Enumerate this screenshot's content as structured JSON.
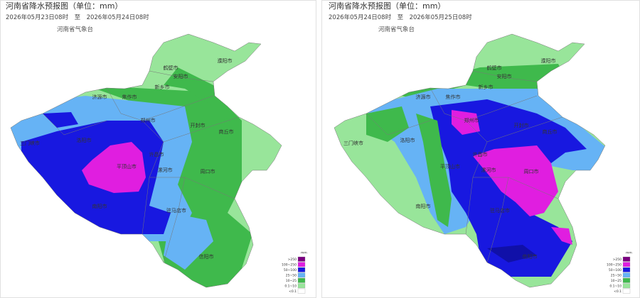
{
  "panels": [
    {
      "title": "河南省降水预报图（单位：mm）",
      "period": "2026年05月23日08时　至　2026年05月24日08时",
      "agency": "河南省气象台",
      "cities": [
        "鹤壁市",
        "濮阳市",
        "安阳市",
        "新乡市",
        "焦作市",
        "济源市",
        "郑州市",
        "开封市",
        "商丘市",
        "三门峡市",
        "洛阳市",
        "平顶山市",
        "许昌市",
        "漯河市",
        "周口市",
        "南阳市",
        "驻马店市",
        "信阳市"
      ],
      "legend": {
        "unit": "mm",
        "items": [
          ">250",
          "100~250",
          "50~100",
          "25~50",
          "10~25",
          "0.1~10",
          "<0.1"
        ]
      }
    },
    {
      "title": "河南省降水预报图（单位：mm）",
      "period": "2026年05月24日08时　至　2026年05月25日08时",
      "agency": "河南省气象台",
      "cities": [
        "鹤壁市",
        "濮阳市",
        "安阳市",
        "新乡市",
        "焦作市",
        "济源市",
        "郑州市",
        "开封市",
        "商丘市",
        "三门峡市",
        "洛阳市",
        "平顶山市",
        "许昌市",
        "漯河市",
        "周口市",
        "南阳市",
        "驻马店市",
        "信阳市"
      ],
      "legend": {
        "unit": "mm",
        "items": [
          ">250",
          "100~250",
          "50~100",
          "25~50",
          "10~25",
          "0.1~10",
          "<0.1"
        ]
      }
    }
  ]
}
